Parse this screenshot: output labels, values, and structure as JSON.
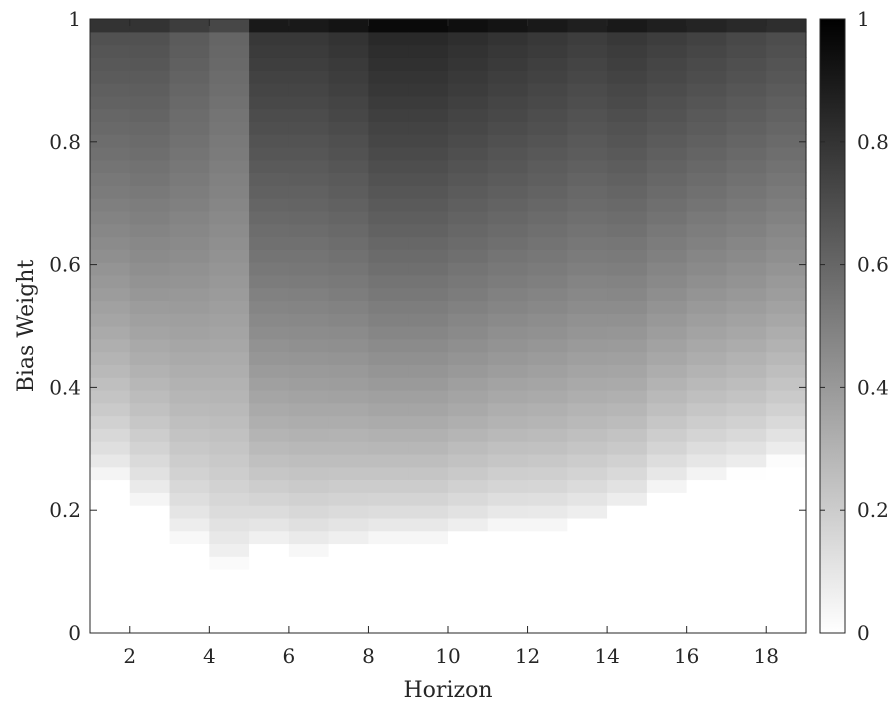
{
  "chart_data": {
    "type": "heatmap",
    "title": "",
    "xlabel": "Horizon",
    "ylabel": "Bias Weight",
    "x_ticks": [
      "2",
      "4",
      "6",
      "8",
      "10",
      "12",
      "14",
      "16",
      "18"
    ],
    "y_ticks": [
      "0",
      "0.2",
      "0.4",
      "0.6",
      "0.8",
      "1"
    ],
    "colorbar_ticks": [
      "0",
      "0.2",
      "0.4",
      "0.6",
      "0.8",
      "1"
    ],
    "xlim": [
      1,
      19
    ],
    "ylim": [
      0,
      1
    ],
    "colormap": "gray-reversed",
    "color_range": [
      0,
      1
    ],
    "columns": [
      {
        "horizon": 1,
        "onset": 0.25,
        "top_value": 0.7
      },
      {
        "horizon": 2,
        "onset": 0.21,
        "top_value": 0.7
      },
      {
        "horizon": 3,
        "onset": 0.15,
        "top_value": 0.66
      },
      {
        "horizon": 4,
        "onset": 0.11,
        "top_value": 0.62
      },
      {
        "horizon": 5,
        "onset": 0.14,
        "top_value": 0.8
      },
      {
        "horizon": 6,
        "onset": 0.13,
        "top_value": 0.8
      },
      {
        "horizon": 7,
        "onset": 0.14,
        "top_value": 0.82
      },
      {
        "horizon": 8,
        "onset": 0.15,
        "top_value": 0.86
      },
      {
        "horizon": 9,
        "onset": 0.15,
        "top_value": 0.86
      },
      {
        "horizon": 10,
        "onset": 0.16,
        "top_value": 0.84
      },
      {
        "horizon": 11,
        "onset": 0.17,
        "top_value": 0.82
      },
      {
        "horizon": 12,
        "onset": 0.17,
        "top_value": 0.8
      },
      {
        "horizon": 13,
        "onset": 0.18,
        "top_value": 0.78
      },
      {
        "horizon": 14,
        "onset": 0.2,
        "top_value": 0.8
      },
      {
        "horizon": 15,
        "onset": 0.23,
        "top_value": 0.78
      },
      {
        "horizon": 16,
        "onset": 0.25,
        "top_value": 0.76
      },
      {
        "horizon": 17,
        "onset": 0.26,
        "top_value": 0.74
      },
      {
        "horizon": 18,
        "onset": 0.28,
        "top_value": 0.72
      }
    ],
    "grid": false,
    "colorbar": true
  }
}
